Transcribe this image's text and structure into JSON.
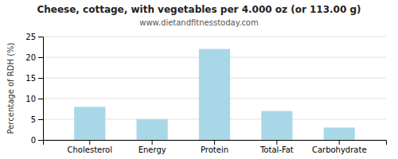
{
  "chart_data": {
    "type": "bar",
    "title": "Cheese, cottage, with vegetables per 4.000 oz (or 113.00 g)",
    "subtitle": "www.dietandfitnesstoday.com",
    "categories": [
      "Cholesterol",
      "Energy",
      "Protein",
      "Total-Fat",
      "Carbohydrate"
    ],
    "values": [
      8,
      5,
      22,
      7,
      3
    ],
    "color": "#a8d8e8",
    "ylabel": "Percentage of RDH (%)",
    "ylim": [
      0,
      25
    ],
    "yticks": [
      0,
      5,
      10,
      15,
      20,
      25
    ],
    "grid": true
  }
}
